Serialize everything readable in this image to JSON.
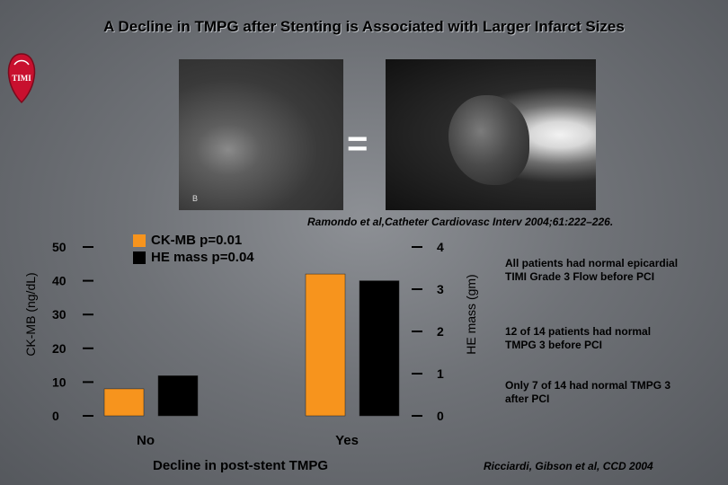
{
  "title": "A Decline in TMPG after Stenting is Associated with Larger Infarct Sizes",
  "logo": {
    "text": "TIMI"
  },
  "images": {
    "angio_label": "B"
  },
  "equals_sign": "=",
  "citation_top": "Ramondo et al,Catheter Cardiovasc Interv 2004;61:222–226.",
  "legend": {
    "ckmb_label": "CK-MB p=0.01",
    "he_label": "HE mass p=0.04"
  },
  "colors": {
    "ckmb": "#f7941d",
    "he_mass": "#000000",
    "background": "#6f7277"
  },
  "notes": [
    "All patients had normal epicardial TIMI Grade 3 Flow before PCI",
    "12 of 14 patients had normal TMPG 3 before PCI",
    "Only 7 of 14 had normal TMPG 3 after PCI"
  ],
  "citation_bottom": "Ricciardi, Gibson et al, CCD 2004",
  "chart_data": {
    "type": "bar",
    "categories": [
      "No",
      "Yes"
    ],
    "xlabel": "Decline in post-stent TMPG",
    "ylabel_left": "CK-MB (ng/dL)",
    "ylabel_right": "HE mass (gm)",
    "ylim_left": [
      0,
      50
    ],
    "ylim_right": [
      0,
      4
    ],
    "yticks_left": [
      "0",
      "10",
      "20",
      "30",
      "40",
      "50"
    ],
    "yticks_right": [
      "0",
      "1",
      "2",
      "3",
      "4"
    ],
    "series": [
      {
        "name": "CK-MB",
        "axis": "left",
        "values": [
          8,
          42
        ]
      },
      {
        "name": "HE mass",
        "axis": "right",
        "values": [
          0.95,
          3.2
        ]
      }
    ]
  }
}
